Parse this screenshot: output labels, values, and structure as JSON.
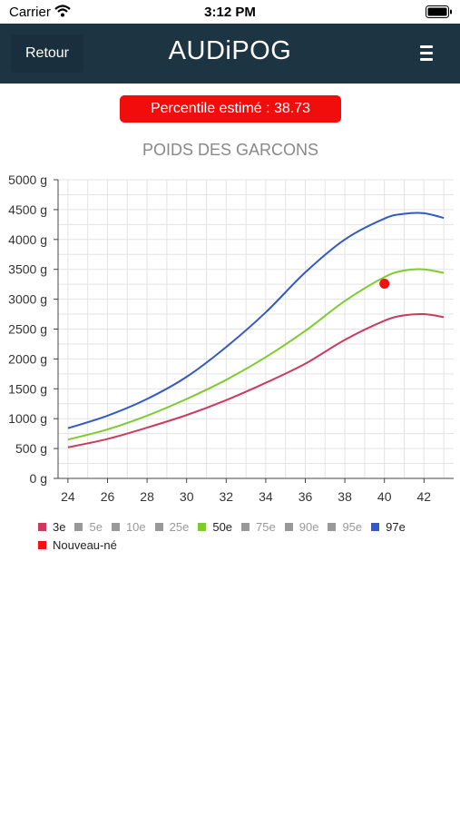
{
  "status_bar": {
    "carrier": "Carrier",
    "time": "3:12 PM"
  },
  "nav": {
    "back_label": "Retour",
    "title": "AUDiPOG",
    "menu_icon": "hamburger-menu-icon"
  },
  "percentile_badge": {
    "text": "Percentile estimé : 38.73",
    "color": "#f20d0d"
  },
  "chart_data": {
    "type": "line",
    "title": "POIDS DES GARCONS",
    "xlabel": "",
    "ylabel": "",
    "xlim": [
      23.5,
      43.5
    ],
    "ylim": [
      0,
      5000
    ],
    "x_ticks": [
      24,
      26,
      28,
      30,
      32,
      34,
      36,
      38,
      40,
      42
    ],
    "y_ticks": [
      {
        "value": 0,
        "label": "0 g"
      },
      {
        "value": 500,
        "label": "500 g"
      },
      {
        "value": 1000,
        "label": "1000 g"
      },
      {
        "value": 1500,
        "label": "1500 g"
      },
      {
        "value": 2000,
        "label": "2000 g"
      },
      {
        "value": 2500,
        "label": "2500 g"
      },
      {
        "value": 3000,
        "label": "3000 g"
      },
      {
        "value": 3500,
        "label": "3500 g"
      },
      {
        "value": 4000,
        "label": "4000 g"
      },
      {
        "value": 4500,
        "label": "4500 g"
      },
      {
        "value": 5000,
        "label": "5000 g"
      }
    ],
    "grid": true,
    "x": [
      24,
      26,
      28,
      30,
      32,
      34,
      36,
      38,
      40,
      41,
      42,
      43
    ],
    "series": [
      {
        "name": "3e",
        "color": "#cc3b5e",
        "values": [
          520,
          660,
          850,
          1060,
          1310,
          1600,
          1920,
          2320,
          2640,
          2730,
          2750,
          2700
        ]
      },
      {
        "name": "50e",
        "color": "#7fcb2e",
        "values": [
          650,
          820,
          1050,
          1330,
          1650,
          2030,
          2470,
          2970,
          3370,
          3480,
          3500,
          3440
        ]
      },
      {
        "name": "97e",
        "color": "#3258c9",
        "values": [
          840,
          1050,
          1330,
          1700,
          2200,
          2780,
          3450,
          4000,
          4350,
          4430,
          4440,
          4360
        ]
      }
    ],
    "newborn_point": {
      "name": "Nouveau-né",
      "x": 40,
      "y": 3260,
      "color": "#f21010"
    },
    "legend": {
      "placement": "bottom",
      "row1": [
        {
          "label": "3e",
          "color": "#cc3b5e",
          "active": true
        },
        {
          "label": "5e",
          "color": "#999999",
          "active": false
        },
        {
          "label": "10e",
          "color": "#999999",
          "active": false
        },
        {
          "label": "25e",
          "color": "#999999",
          "active": false
        },
        {
          "label": "50e",
          "color": "#7fcb2e",
          "active": true
        },
        {
          "label": "75e",
          "color": "#999999",
          "active": false
        },
        {
          "label": "90e",
          "color": "#999999",
          "active": false
        },
        {
          "label": "95e",
          "color": "#999999",
          "active": false
        },
        {
          "label": "97e",
          "color": "#3258c9",
          "active": true
        }
      ],
      "row2": [
        {
          "label": "Nouveau-né",
          "color": "#f21010",
          "active": true
        }
      ]
    }
  }
}
